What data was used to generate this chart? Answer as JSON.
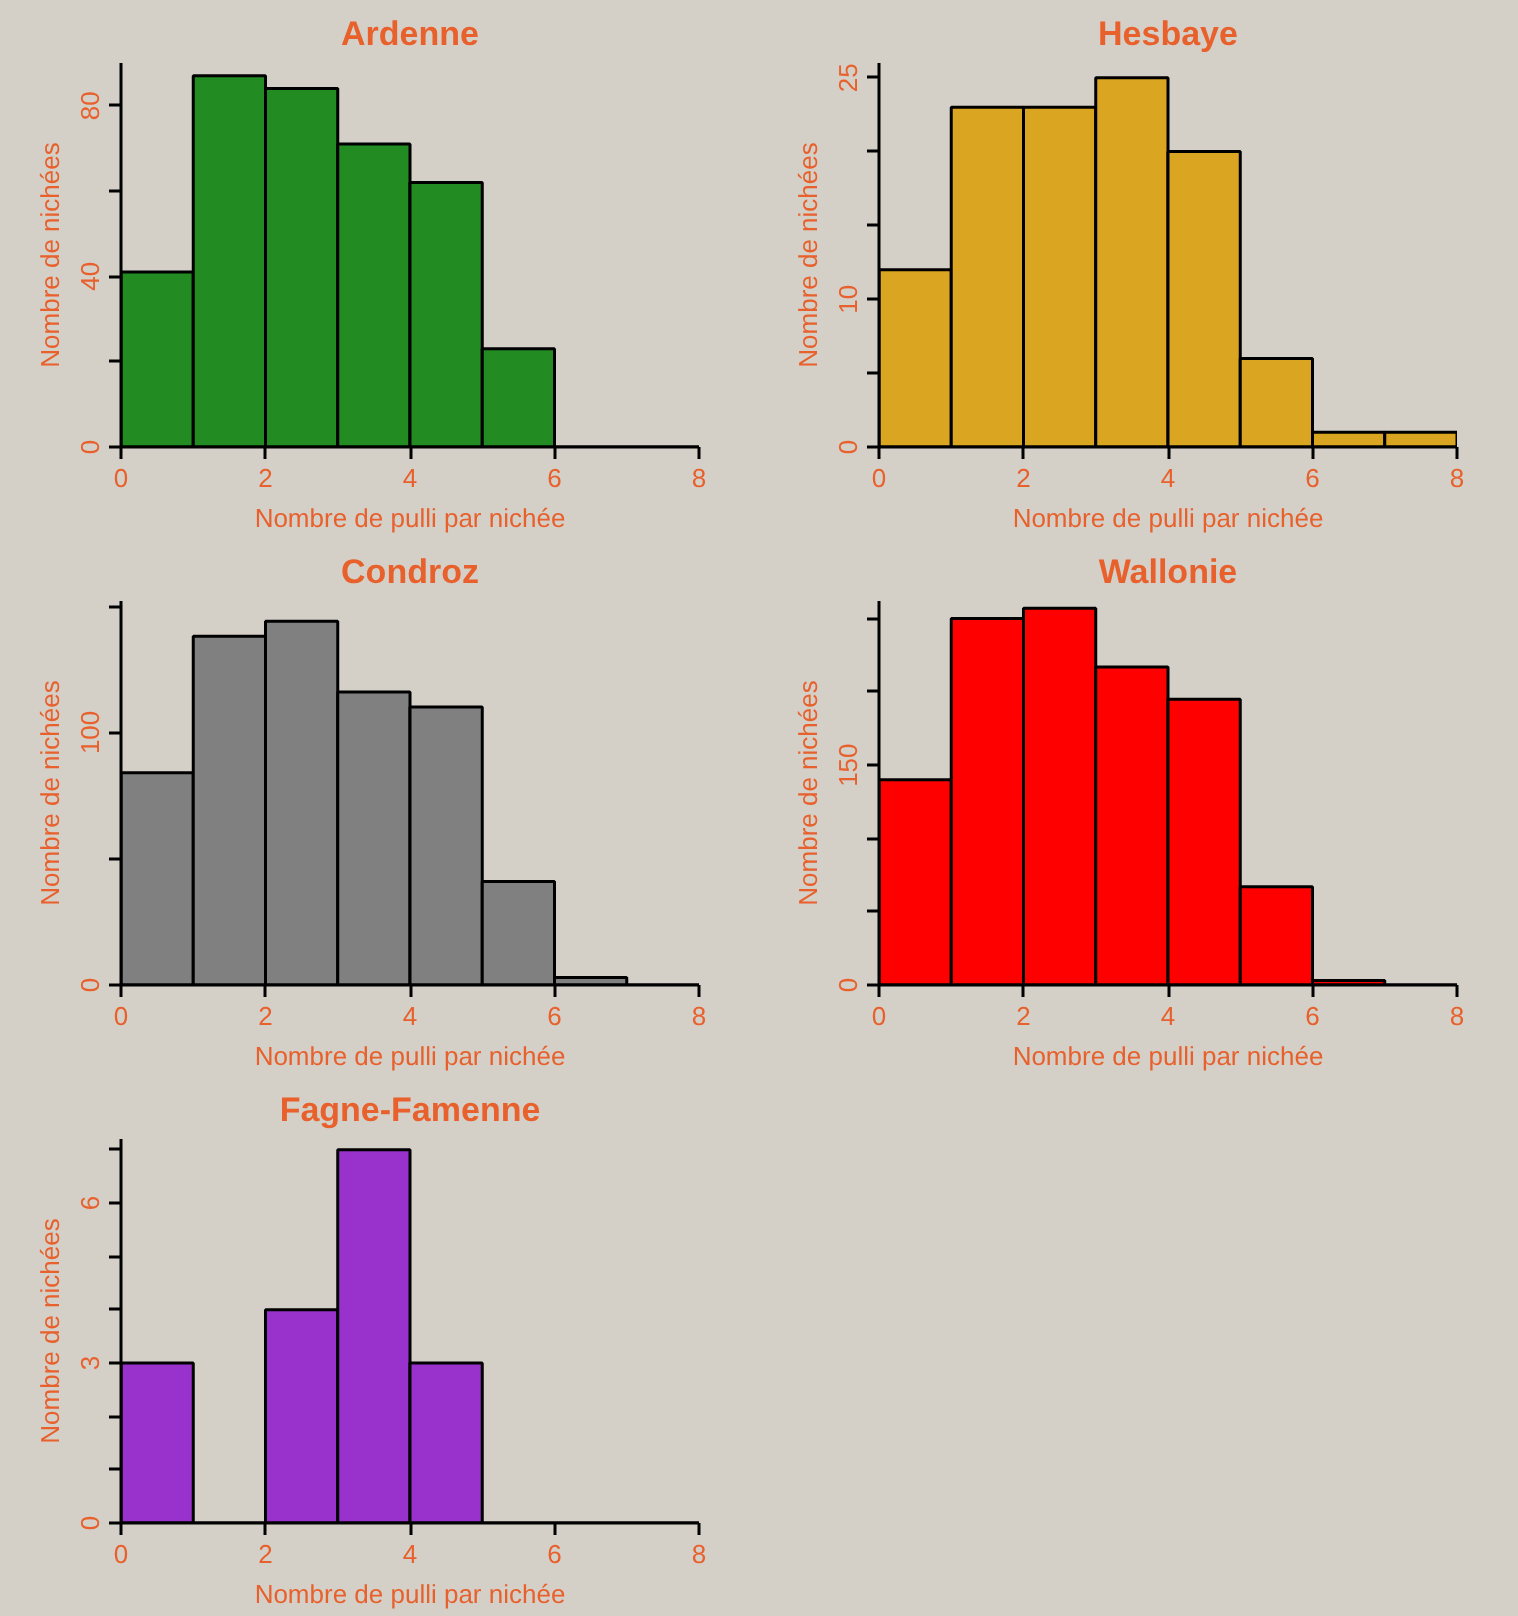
{
  "chart_data": [
    {
      "type": "histogram",
      "title": "Ardenne",
      "xlabel": "Nombre de pulli par nichée",
      "ylabel": "Nombre de nichées",
      "bins": [
        0,
        1,
        2,
        3,
        4,
        5,
        6,
        7,
        8
      ],
      "values": [
        41,
        87,
        84,
        71,
        62,
        23,
        0,
        0
      ],
      "color": "#228b22",
      "xlim": [
        0,
        8
      ],
      "xticks": [
        0,
        2,
        4,
        6,
        8
      ],
      "ylim": [
        0,
        90
      ],
      "yticks": [
        0,
        {
          "value": 20,
          "label": null
        },
        40,
        {
          "value": 60,
          "label": null
        },
        80
      ]
    },
    {
      "type": "histogram",
      "title": "Hesbaye",
      "xlabel": "Nombre de pulli par nichée",
      "ylabel": "Nombre de nichées",
      "bins": [
        0,
        1,
        2,
        3,
        4,
        5,
        6,
        7,
        8
      ],
      "values": [
        12,
        23,
        23,
        25,
        20,
        6,
        1,
        1
      ],
      "color": "#daa520",
      "xlim": [
        0,
        8
      ],
      "xticks": [
        0,
        2,
        4,
        6,
        8
      ],
      "ylim": [
        0,
        26
      ],
      "yticks": [
        0,
        {
          "value": 5,
          "label": null
        },
        10,
        {
          "value": 15,
          "label": null
        },
        {
          "value": 20,
          "label": null
        },
        25
      ]
    },
    {
      "type": "histogram",
      "title": "Condroz",
      "xlabel": "Nombre de pulli par nichée",
      "ylabel": "Nombre de nichées",
      "bins": [
        0,
        1,
        2,
        3,
        4,
        5,
        6,
        7,
        8
      ],
      "values": [
        84,
        138,
        144,
        116,
        110,
        41,
        3,
        0
      ],
      "color": "#808080",
      "xlim": [
        0,
        8
      ],
      "xticks": [
        0,
        2,
        4,
        6,
        8
      ],
      "ylim": [
        0,
        152
      ],
      "yticks": [
        0,
        {
          "value": 50,
          "label": null
        },
        100,
        {
          "value": 150,
          "label": null
        }
      ]
    },
    {
      "type": "histogram",
      "title": "Wallonie",
      "xlabel": "Nombre de pulli par nichée",
      "ylabel": "Nombre de nichées",
      "bins": [
        0,
        1,
        2,
        3,
        4,
        5,
        6,
        7,
        8
      ],
      "values": [
        140,
        250,
        257,
        217,
        195,
        67,
        3,
        0
      ],
      "color": "#ff0000",
      "xlim": [
        0,
        8
      ],
      "xticks": [
        0,
        2,
        4,
        6,
        8
      ],
      "ylim": [
        0,
        262
      ],
      "yticks": [
        0,
        {
          "value": 50,
          "label": null
        },
        {
          "value": 100,
          "label": null
        },
        150,
        {
          "value": 200,
          "label": null
        },
        {
          "value": 250,
          "label": null
        }
      ]
    },
    {
      "type": "histogram",
      "title": "Fagne-Famenne",
      "xlabel": "Nombre de pulli par nichée",
      "ylabel": "Nombre de nichées",
      "bins": [
        0,
        1,
        2,
        3,
        4,
        5,
        6,
        7,
        8
      ],
      "values": [
        3,
        0,
        4,
        7,
        3,
        0,
        0,
        0
      ],
      "color": "#9932cc",
      "xlim": [
        0,
        8
      ],
      "xticks": [
        0,
        2,
        4,
        6,
        8
      ],
      "ylim": [
        0,
        7.2
      ],
      "yticks": [
        0,
        {
          "value": 1,
          "label": null
        },
        {
          "value": 2,
          "label": null
        },
        3,
        {
          "value": 4,
          "label": null
        },
        {
          "value": 5,
          "label": null
        },
        6,
        {
          "value": 7,
          "label": null
        }
      ]
    }
  ]
}
